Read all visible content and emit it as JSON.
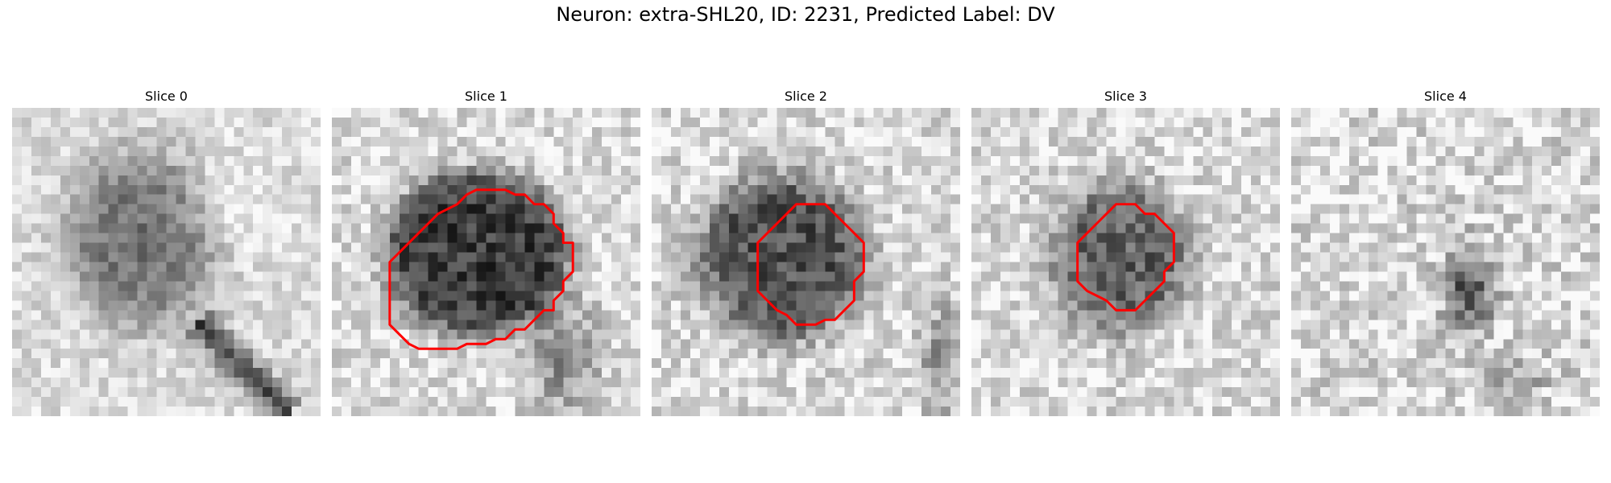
{
  "figure": {
    "title": "Neuron: extra-SHL20, ID: 2231, Predicted Label: DV"
  },
  "contour_color": "#ff0000",
  "slices": [
    {
      "title": "Slice 0",
      "has_contour": false
    },
    {
      "title": "Slice 1",
      "has_contour": true
    },
    {
      "title": "Slice 2",
      "has_contour": true
    },
    {
      "title": "Slice 3",
      "has_contour": true
    },
    {
      "title": "Slice 4",
      "has_contour": false
    }
  ]
}
